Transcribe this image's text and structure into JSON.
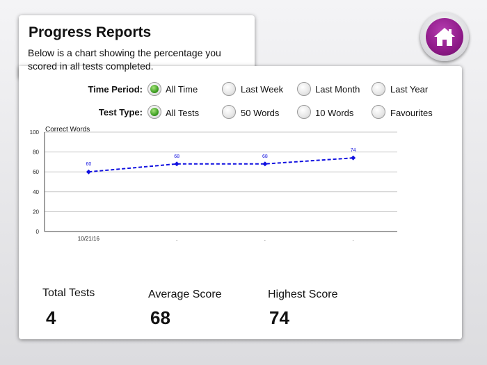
{
  "header": {
    "title": "Progress Reports",
    "description": "Below is a chart showing the percentage you scored in all tests completed."
  },
  "home_button": {
    "icon": "home-icon",
    "color": "#8e1a88"
  },
  "filters": {
    "time_period": {
      "label": "Time Period:",
      "options": [
        "All Time",
        "Last Week",
        "Last Month",
        "Last Year"
      ],
      "selected": "All Time"
    },
    "test_type": {
      "label": "Test Type:",
      "options": [
        "All Tests",
        "50 Words",
        "10 Words",
        "Favourites"
      ],
      "selected": "All Tests"
    }
  },
  "chart_data": {
    "type": "line",
    "ylabel": "Correct Words",
    "categories": [
      "10/21/16",
      ".",
      ".",
      "."
    ],
    "values": [
      60,
      68,
      68,
      74
    ],
    "data_labels": [
      "60",
      "68",
      "68",
      "74"
    ],
    "ylim": [
      0,
      100
    ],
    "yticks": [
      0,
      20,
      40,
      60,
      80,
      100
    ],
    "grid": true,
    "line_color": "#1010e0",
    "line_style": "dashed"
  },
  "stats": {
    "total_tests": {
      "label": "Total Tests",
      "value": "4"
    },
    "average_score": {
      "label": "Average Score",
      "value": "68"
    },
    "highest_score": {
      "label": "Highest Score",
      "value": "74"
    }
  }
}
